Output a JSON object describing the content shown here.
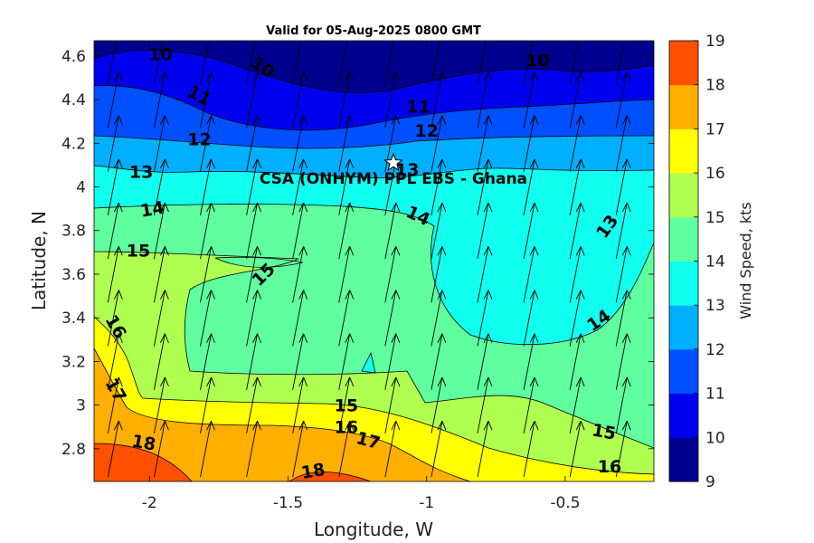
{
  "chart_data": {
    "type": "contour",
    "title": "Valid for 05-Aug-2025 0800 GMT",
    "xlabel": "Longitude, W",
    "ylabel": "Latitude, N",
    "colorbar_label": "Wind Speed, kts",
    "xlim": [
      -2.2,
      -0.18
    ],
    "ylim": [
      2.65,
      4.67
    ],
    "xticks": [
      -2,
      -1.5,
      -1,
      -0.5
    ],
    "xtick_labels": [
      "-2",
      "-1.5",
      "-1",
      "-0.5"
    ],
    "yticks": [
      2.8,
      3,
      3.2,
      3.4,
      3.6,
      3.8,
      4,
      4.2,
      4.4,
      4.6
    ],
    "ytick_labels": [
      "2.8",
      "3",
      "3.2",
      "3.4",
      "3.6",
      "3.8",
      "4",
      "4.2",
      "4.4",
      "4.6"
    ],
    "colorbar_levels": [
      9,
      10,
      11,
      12,
      13,
      14,
      15,
      16,
      17,
      18,
      19
    ],
    "colorbar_tick_labels": [
      "9",
      "10",
      "11",
      "12",
      "13",
      "14",
      "15",
      "16",
      "17",
      "18",
      "19"
    ],
    "colormap": [
      "#00008f",
      "#0000ef",
      "#0050ff",
      "#00b0ff",
      "#10ffef",
      "#5fffa0",
      "#afff50",
      "#ffff00",
      "#ffaf00",
      "#ff5000"
    ],
    "marker": {
      "label": "CSA (ONHYM) PPL EBS  - Ghana",
      "lon": -1.12,
      "lat": 4.11,
      "symbol": "star"
    },
    "contour_labels": [
      {
        "text": "10",
        "lon": -1.96,
        "lat": 4.61,
        "rot": 0
      },
      {
        "text": "10",
        "lon": -1.59,
        "lat": 4.55,
        "rot": 35
      },
      {
        "text": "10",
        "lon": -0.6,
        "lat": 4.58,
        "rot": 0
      },
      {
        "text": "11",
        "lon": -1.82,
        "lat": 4.42,
        "rot": 30
      },
      {
        "text": "11",
        "lon": -1.03,
        "lat": 4.37,
        "rot": 0
      },
      {
        "text": "12",
        "lon": -1.82,
        "lat": 4.22,
        "rot": 0
      },
      {
        "text": "12",
        "lon": -1.0,
        "lat": 4.26,
        "rot": 0
      },
      {
        "text": "13",
        "lon": -2.03,
        "lat": 4.07,
        "rot": 0
      },
      {
        "text": "13",
        "lon": -1.07,
        "lat": 4.08,
        "rot": 0
      },
      {
        "text": "13",
        "lon": -0.35,
        "lat": 3.82,
        "rot": -55
      },
      {
        "text": "14",
        "lon": -1.99,
        "lat": 3.9,
        "rot": -10
      },
      {
        "text": "14",
        "lon": -1.03,
        "lat": 3.87,
        "rot": 25
      },
      {
        "text": "14",
        "lon": -0.38,
        "lat": 3.39,
        "rot": -35
      },
      {
        "text": "15",
        "lon": -2.04,
        "lat": 3.71,
        "rot": 0
      },
      {
        "text": "15",
        "lon": -1.59,
        "lat": 3.6,
        "rot": -45
      },
      {
        "text": "15",
        "lon": -1.29,
        "lat": 3.0,
        "rot": 0
      },
      {
        "text": "15",
        "lon": -0.36,
        "lat": 2.88,
        "rot": 10
      },
      {
        "text": "16",
        "lon": -2.12,
        "lat": 3.36,
        "rot": 60
      },
      {
        "text": "16",
        "lon": -1.29,
        "lat": 2.9,
        "rot": 0
      },
      {
        "text": "16",
        "lon": -0.34,
        "lat": 2.72,
        "rot": 0
      },
      {
        "text": "17",
        "lon": -2.12,
        "lat": 3.07,
        "rot": 60
      },
      {
        "text": "17",
        "lon": -1.21,
        "lat": 2.84,
        "rot": 15
      },
      {
        "text": "18",
        "lon": -2.02,
        "lat": 2.83,
        "rot": 10
      },
      {
        "text": "18",
        "lon": -1.41,
        "lat": 2.7,
        "rot": -10
      }
    ],
    "wind_vectors": {
      "grid_lon_start": -2.15,
      "grid_lon_step": 0.1667,
      "grid_lon_count": 12,
      "grid_lat_start": 2.67,
      "grid_lat_step": 0.2,
      "grid_lat_count": 10,
      "direction": "from south, slightly from west",
      "length_kts_scale": 1
    }
  }
}
